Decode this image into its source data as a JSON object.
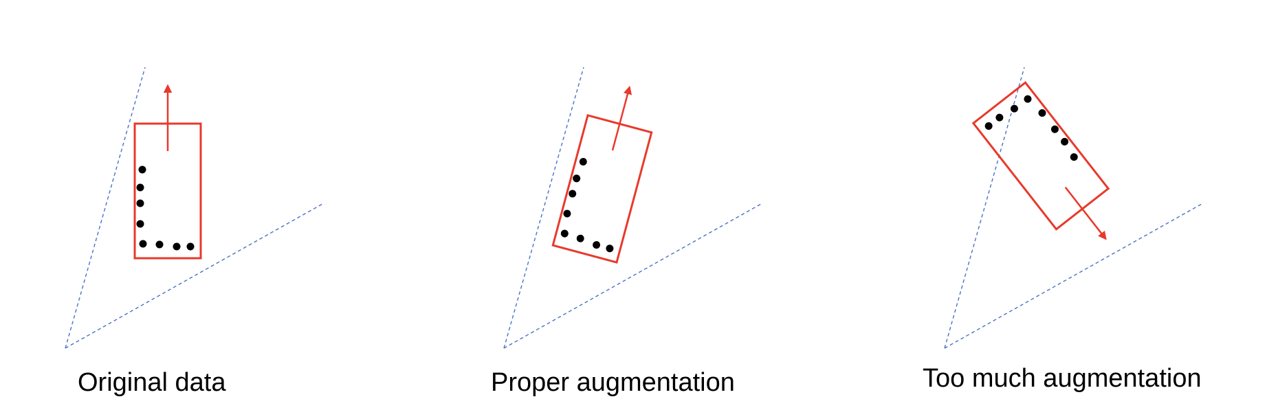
{
  "panels": [
    {
      "caption": "Original data",
      "rotation_deg": 0
    },
    {
      "caption": "Proper augmentation",
      "rotation_deg": 15
    },
    {
      "caption": "Too much augmentation",
      "rotation_deg": 142
    }
  ],
  "colors": {
    "box": "#e8392b",
    "arrow": "#e8392b",
    "points": "#000000",
    "view_cone": "#4a72c4",
    "background": "#ffffff"
  },
  "icons": {
    "arrow": "heading-arrow",
    "box": "bounding-box",
    "points": "lidar-points",
    "cone": "sensor-field-of-view"
  }
}
